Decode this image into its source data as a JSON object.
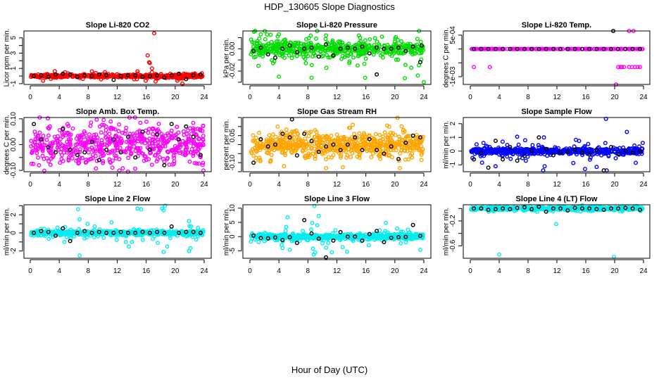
{
  "title": "HDP_130605  Slope Diagnostics",
  "xlabel": "Hour of Day (UTC)",
  "chart_data": [
    {
      "type": "scatter",
      "title": "Slope Li-820 CO2",
      "ylabel": "Licor ppm per min.",
      "color": "#ff0000",
      "xlim": [
        0,
        24
      ],
      "xticks": [
        0,
        4,
        8,
        12,
        16,
        20,
        24
      ],
      "ylim": [
        -1.1,
        5.9
      ],
      "yticks": [
        -1,
        0,
        1,
        2,
        3,
        4,
        5
      ],
      "ytick_labels": [
        "-1",
        "",
        "1",
        "",
        "3",
        "",
        "5"
      ],
      "cloud": {
        "n": 420,
        "sd": 0.13,
        "wide_n": 30,
        "wide_sd": 0.3
      },
      "outliers": [
        [
          16.2,
          2.7
        ],
        [
          16.4,
          1.8
        ],
        [
          16.5,
          1.7
        ],
        [
          16.8,
          1.0
        ],
        [
          17.1,
          5.6
        ],
        [
          16.8,
          0.5
        ],
        [
          17.3,
          -0.7
        ],
        [
          21,
          -1.0
        ],
        [
          20.3,
          -0.6
        ],
        [
          14.8,
          0.6
        ],
        [
          4.8,
          0.5
        ],
        [
          10.3,
          0.5
        ],
        [
          8.5,
          0.6
        ]
      ],
      "mean_series": [
        0.0,
        0.1,
        -0.1,
        0.2,
        0.3,
        0.2,
        -0.1,
        0.1,
        0.0,
        0.2,
        0.1,
        -0.5,
        0.0,
        0.1,
        0.1,
        -0.1,
        0.0,
        0.1,
        -0.2,
        0.1,
        0.3,
        -0.4,
        0.1,
        0.2
      ],
      "mean_extra": []
    },
    {
      "type": "scatter",
      "title": "Slope Li-820 Pressure",
      "ylabel": "kPa per min.",
      "color": "#00dd00",
      "xlim": [
        0,
        24
      ],
      "xticks": [
        0,
        4,
        8,
        12,
        16,
        20,
        24
      ],
      "ylim": [
        -0.032,
        0.016
      ],
      "yticks": [
        -0.03,
        -0.02,
        -0.01,
        0,
        0.01
      ],
      "ytick_labels": [
        "",
        "-0.02",
        "",
        "0.00",
        ""
      ],
      "cloud": {
        "n": 380,
        "sd": 0.003,
        "wide_n": 150,
        "wide_sd": 0.008
      },
      "outliers": [
        [
          4,
          -0.025
        ],
        [
          8.5,
          -0.026
        ],
        [
          15.9,
          -0.026
        ],
        [
          24,
          -0.03
        ],
        [
          4,
          0.013
        ],
        [
          10.5,
          0.012
        ],
        [
          1.5,
          0.013
        ],
        [
          15.2,
          0.01
        ]
      ],
      "mean_series": [
        -0.002,
        0.001,
        -0.005,
        -0.008,
        0,
        0.003,
        -0.003,
        0,
        0.001,
        -0.007,
        0.004,
        -0.006,
        0,
        0.001,
        0,
        0.002,
        -0.004,
        0.001,
        0.0,
        0.0,
        0.001,
        -0.002,
        0.002,
        -0.012
      ],
      "mean_extra": [
        [
          17.5,
          -0.023
        ],
        [
          23.7,
          0.003
        ]
      ]
    },
    {
      "type": "scatter",
      "title": "Slope Li-820 Temp.",
      "ylabel": "degrees C per min.",
      "color": "#ff00ff",
      "xlim": [
        0,
        24
      ],
      "xticks": [
        0,
        4,
        8,
        12,
        16,
        20,
        24
      ],
      "ylim": [
        -0.00128,
        0.00065
      ],
      "yticks": [
        -0.001,
        -0.0005,
        0,
        0.0005
      ],
      "ytick_labels": [
        "-1e-03",
        "",
        "",
        "5e-04"
      ],
      "cloud": {
        "n": 200,
        "sd": 0,
        "wide_n": 0,
        "wide_sd": 0
      },
      "outliers": [
        [
          0.5,
          -0.00065
        ],
        [
          2.7,
          -0.00065
        ],
        [
          20.2,
          -0.0013
        ],
        [
          20.5,
          -0.00065
        ],
        [
          20.8,
          -0.00065
        ],
        [
          21,
          -0.00065
        ],
        [
          21.3,
          -0.00065
        ],
        [
          22,
          -0.00065
        ],
        [
          22.4,
          -0.00065
        ],
        [
          22.8,
          -0.00065
        ],
        [
          23.2,
          -0.00065
        ],
        [
          23.5,
          -0.00065
        ],
        [
          22,
          0.00065
        ],
        [
          22.6,
          0.00065
        ]
      ],
      "mean_series": [
        0,
        0,
        0,
        0,
        0,
        0,
        0,
        0,
        0,
        0,
        0,
        0,
        0,
        0,
        0,
        0,
        0,
        0,
        0,
        0,
        0,
        0,
        0,
        0
      ],
      "mean_extra": [
        [
          19.8,
          0.00065
        ]
      ]
    },
    {
      "type": "scatter",
      "title": "Slope Amb. Box Temp.",
      "ylabel": "degrees C per min.",
      "color": "#ff00ff",
      "xlim": [
        0,
        24
      ],
      "xticks": [
        0,
        4,
        8,
        12,
        16,
        20,
        24
      ],
      "ylim": [
        -0.105,
        0.105
      ],
      "yticks": [
        -0.1,
        -0.05,
        0,
        0.05,
        0.1
      ],
      "ytick_labels": [
        "-0.10",
        "",
        "0.00",
        "",
        "0.10"
      ],
      "cloud": {
        "n": 520,
        "sd": 0.035,
        "wide_n": 60,
        "wide_sd": 0.05
      },
      "outliers": [
        [
          1.3,
          0.105
        ],
        [
          12.3,
          -0.1
        ],
        [
          23.9,
          -0.1
        ],
        [
          1.2,
          -0.08
        ]
      ],
      "mean_series": [
        0.08,
        0.02,
        -0.01,
        -0.03,
        0.06,
        -0.02,
        -0.04,
        -0.03,
        0.01,
        -0.06,
        -0.02,
        0.02,
        -0.03,
        0.03,
        -0.05,
        0.05,
        -0.02,
        0.04,
        -0.08,
        0.08,
        0.02,
        0.07,
        0.03,
        -0.04
      ],
      "mean_extra": []
    },
    {
      "type": "scatter",
      "title": "Slope Gas Stream RH",
      "ylabel": "percent per min.",
      "color": "#ffa500",
      "xlim": [
        0,
        24
      ],
      "xticks": [
        0,
        4,
        8,
        12,
        16,
        20,
        24
      ],
      "ylim": [
        -0.15,
        0.15
      ],
      "yticks": [
        -0.15,
        -0.1,
        -0.05,
        0,
        0.05,
        0.1,
        0.15
      ],
      "ytick_labels": [
        "",
        "-0.10",
        "",
        "",
        "0.05",
        "",
        ""
      ],
      "cloud": {
        "n": 560,
        "sd": 0.035,
        "wide_n": 60,
        "wide_sd": 0.06
      },
      "outliers": [
        [
          9,
          0.08
        ],
        [
          14.2,
          0.11
        ],
        [
          20.7,
          -0.13
        ],
        [
          10.5,
          -0.13
        ],
        [
          4.7,
          -0.12
        ]
      ],
      "mean_series": [
        -0.1,
        0.03,
        -0.01,
        0.0,
        0.06,
        0.04,
        -0.06,
        0.06,
        0.02,
        -0.04,
        -0.01,
        0.0,
        -0.03,
        0.0,
        0.04,
        -0.03,
        0.03,
        -0.03,
        -0.05,
        -0.01,
        -0.08,
        0.01,
        0.05,
        0.04
      ],
      "mean_extra": [
        [
          5.8,
          0.14
        ]
      ]
    },
    {
      "type": "scatter",
      "title": "Slope Sample Flow",
      "ylabel": "ml/min per min.",
      "color": "#0000ff",
      "xlim": [
        0,
        24
      ],
      "xticks": [
        0,
        4,
        8,
        12,
        16,
        20,
        24
      ],
      "ylim": [
        -1.5,
        2.45
      ],
      "yticks": [
        -1,
        0,
        1,
        2
      ],
      "ytick_labels": [
        "-1",
        "0",
        "1",
        "2"
      ],
      "cloud": {
        "n": 520,
        "sd": 0.1,
        "wide_n": 80,
        "wide_sd": 0.35
      },
      "outliers": [
        [
          18.8,
          2.35
        ],
        [
          21.7,
          1.4
        ],
        [
          10.2,
          1.0
        ],
        [
          6.5,
          1.05
        ],
        [
          7.6,
          0.8
        ],
        [
          7.7,
          -0.7
        ],
        [
          10.1,
          -1.4
        ],
        [
          10.3,
          -1.1
        ],
        [
          15.9,
          -1.3
        ],
        [
          18.9,
          -1.4
        ],
        [
          17.5,
          -1.15
        ],
        [
          3.5,
          -1.1
        ],
        [
          0.3,
          -0.5
        ]
      ],
      "mean_series": [
        -0.6,
        -0.15,
        -1.2,
        0.75,
        -0.6,
        0.3,
        -0.7,
        -0.35,
        0.05,
        1.0,
        0.15,
        -0.3,
        -0.1,
        -0.05,
        0.1,
        -0.1,
        -0.25,
        0.1,
        -1.4,
        0.3,
        -0.2,
        0.05,
        -0.1,
        0.0
      ],
      "mean_extra": []
    },
    {
      "type": "scatter",
      "title": "Slope Line 2 Flow",
      "ylabel": "ml/min per min.",
      "color": "#00eeee",
      "xlim": [
        0,
        24
      ],
      "xticks": [
        0,
        4,
        8,
        12,
        16,
        20,
        24
      ],
      "ylim": [
        -2.8,
        3.1
      ],
      "yticks": [
        -2,
        -1,
        0,
        1,
        2,
        3
      ],
      "ytick_labels": [
        "-2",
        "",
        "0",
        "",
        "2",
        ""
      ],
      "cloud": {
        "n": 480,
        "sd": 0.12,
        "wide_n": 60,
        "wide_sd": 0.4
      },
      "outliers": [
        [
          6.6,
          2.6
        ],
        [
          6.8,
          1.5
        ],
        [
          14.8,
          2.7
        ],
        [
          15.3,
          2.6
        ],
        [
          18.2,
          2.7
        ],
        [
          18.6,
          3.0
        ],
        [
          18.4,
          2.5
        ],
        [
          6.8,
          -2.5
        ],
        [
          4.7,
          -1.0
        ],
        [
          13.2,
          -1.0
        ],
        [
          13.6,
          -1.5
        ],
        [
          17.6,
          -1.1
        ],
        [
          18.4,
          -2.1
        ],
        [
          18.9,
          -1.5
        ],
        [
          21.9,
          -2.0
        ],
        [
          22.1,
          -1.7
        ],
        [
          21.9,
          1.3
        ],
        [
          22.2,
          0.7
        ],
        [
          7.9,
          1.0
        ],
        [
          7.8,
          -0.5
        ],
        [
          7.5,
          -0.6
        ]
      ],
      "mean_series": [
        0.0,
        0.2,
        0.1,
        -0.3,
        0.5,
        -0.9,
        0.0,
        0.2,
        0.0,
        0.1,
        0.0,
        0.0,
        0.1,
        0.0,
        0.0,
        0.1,
        0.0,
        0.1,
        0.0,
        0.7,
        0.0,
        0.1,
        0.1,
        0.0
      ],
      "mean_extra": []
    },
    {
      "type": "scatter",
      "title": "Slope Line 3 Flow",
      "ylabel": "ml/min per min.",
      "color": "#00eeee",
      "xlim": [
        0,
        24
      ],
      "xticks": [
        0,
        4,
        8,
        12,
        16,
        20,
        24
      ],
      "ylim": [
        -7.6,
        11.2
      ],
      "yticks": [
        -5,
        0,
        5,
        10
      ],
      "ytick_labels": [
        "-5",
        "0",
        "5",
        "10"
      ],
      "cloud": {
        "n": 480,
        "sd": 0.45,
        "wide_n": 70,
        "wide_sd": 1.6
      },
      "outliers": [
        [
          8.9,
          10.8
        ],
        [
          9.5,
          7.3
        ],
        [
          5.2,
          6.8
        ],
        [
          9.3,
          4.0
        ],
        [
          8.6,
          4.8
        ],
        [
          5,
          3.4
        ],
        [
          5.5,
          -4.6
        ],
        [
          4.5,
          -4
        ],
        [
          8.7,
          -4.2
        ],
        [
          8.8,
          -6.3
        ],
        [
          9,
          -5.6
        ],
        [
          11.3,
          -5.5
        ],
        [
          13.4,
          -5.3
        ],
        [
          10.5,
          -3.9
        ],
        [
          12.8,
          -3.7
        ],
        [
          16.4,
          -3
        ],
        [
          17.9,
          2.2
        ],
        [
          21.8,
          2.4
        ]
      ],
      "mean_series": [
        0.4,
        -0.5,
        -0.6,
        -0.3,
        -1.2,
        -0.2,
        -2.2,
        5.8,
        1.1,
        -0.7,
        -7.3,
        -1.4,
        1.6,
        0.0,
        0.0,
        -1.4,
        0.9,
        2.0,
        -1.9,
        -0.4,
        -0.2,
        -0.1,
        4.1,
        0.3
      ],
      "mean_extra": []
    },
    {
      "type": "scatter",
      "title": "Slope Line 4 (LT) Flow",
      "ylabel": "ml/min per min.",
      "color": "#00eeee",
      "xlim": [
        0,
        24
      ],
      "xticks": [
        0,
        4,
        8,
        12,
        16,
        20,
        24
      ],
      "ylim": [
        -0.8,
        0.06
      ],
      "yticks": [
        -0.6,
        -0.4,
        -0.2,
        0
      ],
      "ytick_labels": [
        "-0.6",
        "",
        "-0.2",
        ""
      ],
      "cloud": {
        "n": 480,
        "sd": 0.015,
        "wide_n": 20,
        "wide_sd": 0.03
      },
      "outliers": [
        [
          4,
          -0.74
        ],
        [
          11.9,
          -0.25
        ],
        [
          19.9,
          -0.78
        ],
        [
          15.5,
          0.05
        ]
      ],
      "mean_series": [
        0.0,
        0.0,
        -0.02,
        -0.01,
        0.0,
        -0.01,
        0.01,
        0.02,
        -0.01,
        0.03,
        -0.05,
        0.0,
        0.0,
        -0.03,
        0.01,
        0.0,
        0.0,
        -0.01,
        -0.02,
        0.0,
        0.0,
        0.01,
        0.0,
        -0.02
      ],
      "mean_extra": []
    }
  ]
}
